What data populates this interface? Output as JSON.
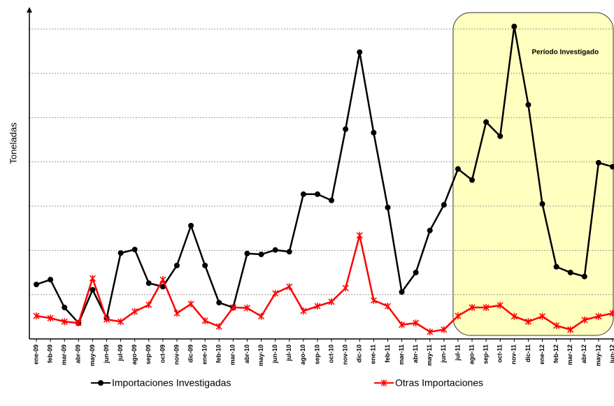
{
  "chart_data": {
    "type": "line",
    "y_label": "Toneladas",
    "categories": [
      "ene-09",
      "feb-09",
      "mar-09",
      "abr-09",
      "may-09",
      "jun-09",
      "jul-09",
      "ago-09",
      "sep-09",
      "oct-09",
      "nov-09",
      "dic-09",
      "ene-10",
      "feb-10",
      "mar-10",
      "abr-10",
      "may-10",
      "jun-10",
      "jul-10",
      "ago-10",
      "sep-10",
      "oct-10",
      "nov-10",
      "dic-10",
      "ene-11",
      "feb-11",
      "mar-11",
      "abr-11",
      "may-11",
      "jun-11",
      "jul-11",
      "ago-11",
      "sep-11",
      "oct-11",
      "nov-11",
      "dic-11",
      "ene-12",
      "feb-12",
      "mar-12",
      "abr-12",
      "may-12",
      "jun-12"
    ],
    "series": [
      {
        "name": "Importaciones Investigadas",
        "color": "#000000",
        "marker": "circle",
        "values": [
          1.23,
          1.34,
          0.71,
          0.36,
          1.11,
          0.47,
          1.94,
          2.02,
          1.26,
          1.18,
          1.66,
          2.56,
          1.66,
          0.82,
          0.71,
          1.93,
          1.91,
          2.01,
          1.97,
          3.27,
          3.27,
          3.13,
          4.74,
          6.48,
          4.66,
          2.97,
          1.06,
          1.5,
          2.45,
          3.03,
          3.84,
          3.59,
          4.9,
          4.58,
          7.06,
          5.29,
          3.05,
          1.63,
          1.5,
          1.41,
          3.98,
          3.89
        ]
      },
      {
        "name": "Otras Importaciones",
        "color": "#ff0000",
        "marker": "star",
        "values": [
          0.52,
          0.47,
          0.39,
          0.36,
          1.37,
          0.44,
          0.39,
          0.62,
          0.77,
          1.34,
          0.58,
          0.79,
          0.41,
          0.28,
          0.71,
          0.7,
          0.51,
          1.03,
          1.18,
          0.63,
          0.74,
          0.84,
          1.15,
          2.34,
          0.87,
          0.74,
          0.32,
          0.36,
          0.16,
          0.21,
          0.52,
          0.71,
          0.71,
          0.76,
          0.51,
          0.39,
          0.51,
          0.3,
          0.21,
          0.43,
          0.51,
          0.58
        ]
      }
    ],
    "highlight": {
      "label": "Período Investigado",
      "start": "jul-11",
      "end": "jun-12",
      "color": "#ffffc0"
    },
    "ylim": [
      0,
      7.5
    ],
    "yticks": [
      0,
      1,
      2,
      3,
      4,
      5,
      6,
      7
    ],
    "grid": true
  }
}
